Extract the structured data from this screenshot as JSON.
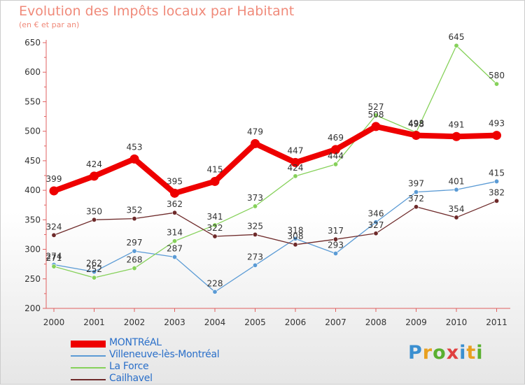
{
  "chart_data": {
    "type": "line",
    "title": "Evolution des Impôts locaux par Habitant",
    "subtitle": "(en € et par an)",
    "x": [
      "2000",
      "2001",
      "2002",
      "2003",
      "2004",
      "2005",
      "2006",
      "2007",
      "2008",
      "2009",
      "2010",
      "2011"
    ],
    "ylim": [
      200,
      650
    ],
    "yticks": [
      200,
      250,
      300,
      350,
      400,
      450,
      500,
      550,
      600,
      650
    ],
    "grid": false,
    "legend_position": "bottom-left",
    "series": [
      {
        "name": "MONTRéAL",
        "color": "#ee0000",
        "emphasis": true,
        "values": [
          399,
          424,
          453,
          395,
          415,
          479,
          447,
          469,
          508,
          493,
          491,
          493
        ]
      },
      {
        "name": "Villeneuve-lès-Montréal",
        "color": "#5b9bd5",
        "values": [
          274,
          262,
          297,
          287,
          228,
          273,
          318,
          293,
          346,
          397,
          401,
          415
        ]
      },
      {
        "name": "La Force",
        "color": "#86d15a",
        "values": [
          271,
          252,
          268,
          314,
          341,
          373,
          424,
          444,
          527,
          498,
          645,
          580
        ]
      },
      {
        "name": "Cailhavel",
        "color": "#6e2a2a",
        "values": [
          324,
          350,
          352,
          362,
          322,
          325,
          308,
          317,
          327,
          372,
          354,
          382
        ]
      }
    ]
  },
  "branding": {
    "logo_letters": [
      "P",
      "r",
      "o",
      "x",
      "i",
      "t",
      "i"
    ],
    "logo_colors": [
      "#3a8fd0",
      "#e8a020",
      "#5ab030",
      "#e04040",
      "#3a8fd0",
      "#e8a020",
      "#5ab030"
    ]
  }
}
